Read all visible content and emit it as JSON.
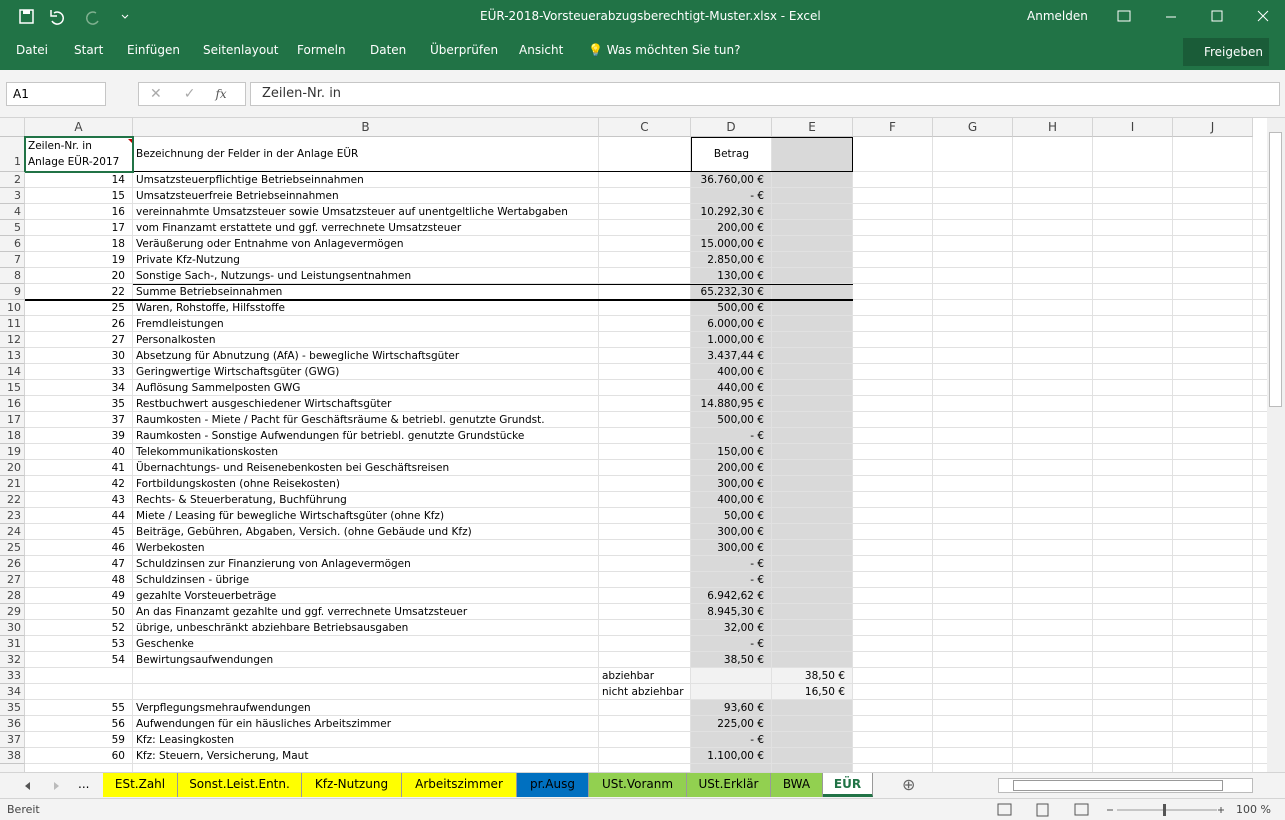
{
  "title_bar": {
    "title": "EÜR-2018-Vorsteuerabzugsberechtigt-Muster.xlsx  -  Excel",
    "sign_in": "Anmelden"
  },
  "ribbon": {
    "tabs": [
      "Datei",
      "Start",
      "Einfügen",
      "Seitenlayout",
      "Formeln",
      "Daten",
      "Überprüfen",
      "Ansicht"
    ],
    "tell_me": "Was möchten Sie tun?",
    "share": "Freigeben"
  },
  "formula_bar": {
    "name_box": "A1",
    "function_label": "fx",
    "content": "Zeilen-Nr. in"
  },
  "columns": [
    "A",
    "B",
    "C",
    "D",
    "E",
    "F",
    "G",
    "H",
    "I",
    "J"
  ],
  "header_row": {
    "row": 1,
    "a": [
      "Zeilen-Nr. in",
      "Anlage EÜR-2017"
    ],
    "b": "Bezeichnung der Felder in der Anlage EÜR",
    "d": "Betrag"
  },
  "rows": [
    {
      "row": 2,
      "a": 14,
      "b": "Umsatzsteuerpflichtige Betriebseinnahmen",
      "d": "36.760,00 €"
    },
    {
      "row": 3,
      "a": 15,
      "b": "Umsatzsteuerfreie Betriebseinnahmen",
      "d": "-   €"
    },
    {
      "row": 4,
      "a": 16,
      "b": "vereinnahmte Umsatzsteuer sowie Umsatzsteuer auf unentgeltliche Wertabgaben",
      "d": "10.292,30 €"
    },
    {
      "row": 5,
      "a": 17,
      "b": "vom Finanzamt erstattete und ggf. verrechnete Umsatzsteuer",
      "d": "200,00 €"
    },
    {
      "row": 6,
      "a": 18,
      "b": "Veräußerung oder Entnahme von Anlagevermögen",
      "d": "15.000,00 €"
    },
    {
      "row": 7,
      "a": 19,
      "b": "Private Kfz-Nutzung",
      "d": "2.850,00 €"
    },
    {
      "row": 8,
      "a": 20,
      "b": "Sonstige Sach-, Nutzungs- und Leistungsentnahmen",
      "d": "130,00 €"
    },
    {
      "row": 9,
      "a": 22,
      "b": "Summe Betriebseinnahmen",
      "d": "65.232,30 €"
    },
    {
      "row": 10,
      "a": 25,
      "b": "Waren, Rohstoffe, Hilfsstoffe",
      "d": "500,00 €"
    },
    {
      "row": 11,
      "a": 26,
      "b": "Fremdleistungen",
      "d": "6.000,00 €"
    },
    {
      "row": 12,
      "a": 27,
      "b": "Personalkosten",
      "d": "1.000,00 €"
    },
    {
      "row": 13,
      "a": 30,
      "b": "Absetzung für Abnutzung (AfA) - bewegliche Wirtschaftsgüter",
      "d": "3.437,44 €"
    },
    {
      "row": 14,
      "a": 33,
      "b": "Geringwertige Wirtschaftsgüter (GWG)",
      "d": "400,00 €"
    },
    {
      "row": 15,
      "a": 34,
      "b": "Auflösung Sammelposten GWG",
      "d": "440,00 €"
    },
    {
      "row": 16,
      "a": 35,
      "b": "Restbuchwert ausgeschiedener Wirtschaftsgüter",
      "d": "14.880,95 €"
    },
    {
      "row": 17,
      "a": 37,
      "b": "Raumkosten - Miete / Pacht für Geschäftsräume & betriebl. genutzte Grundst.",
      "d": "500,00 €"
    },
    {
      "row": 18,
      "a": 39,
      "b": "Raumkosten - Sonstige Aufwendungen für betriebl. genutzte Grundstücke",
      "d": "-   €"
    },
    {
      "row": 19,
      "a": 40,
      "b": "Telekommunikationskosten",
      "d": "150,00 €"
    },
    {
      "row": 20,
      "a": 41,
      "b": "Übernachtungs- und Reisenebenkosten bei Geschäftsreisen",
      "d": "200,00 €"
    },
    {
      "row": 21,
      "a": 42,
      "b": "Fortbildungskosten (ohne Reisekosten)",
      "d": "300,00 €"
    },
    {
      "row": 22,
      "a": 43,
      "b": "Rechts- & Steuerberatung, Buchführung",
      "d": "400,00 €"
    },
    {
      "row": 23,
      "a": 44,
      "b": "Miete / Leasing für bewegliche Wirtschaftsgüter (ohne Kfz)",
      "d": "50,00 €"
    },
    {
      "row": 24,
      "a": 45,
      "b": "Beiträge, Gebühren, Abgaben, Versich. (ohne Gebäude und Kfz)",
      "d": "300,00 €"
    },
    {
      "row": 25,
      "a": 46,
      "b": "Werbekosten",
      "d": "300,00 €"
    },
    {
      "row": 26,
      "a": 47,
      "b": "Schuldzinsen zur Finanzierung von Anlagevermögen",
      "d": "-   €"
    },
    {
      "row": 27,
      "a": 48,
      "b": "Schuldzinsen - übrige",
      "d": "-   €"
    },
    {
      "row": 28,
      "a": 49,
      "b": "gezahlte Vorsteuerbeträge",
      "d": "6.942,62 €"
    },
    {
      "row": 29,
      "a": 50,
      "b": "An das Finanzamt gezahlte und ggf. verrechnete Umsatzsteuer",
      "d": "8.945,30 €"
    },
    {
      "row": 30,
      "a": 52,
      "b": "übrige, unbeschränkt abziehbare Betriebsausgaben",
      "d": "32,00 €"
    },
    {
      "row": 31,
      "a": 53,
      "b": "Geschenke",
      "d": "-   €"
    },
    {
      "row": 32,
      "a": 54,
      "b": "Bewirtungsaufwendungen",
      "d": "38,50 €"
    },
    {
      "row": 33,
      "c": "abziehbar",
      "e": "38,50 €"
    },
    {
      "row": 34,
      "c": "nicht abziehbar",
      "e": "16,50 €"
    },
    {
      "row": 35,
      "a": 55,
      "b": "Verpflegungsmehraufwendungen",
      "d": "93,60 €"
    },
    {
      "row": 36,
      "a": 56,
      "b": "Aufwendungen für ein häusliches Arbeitszimmer",
      "d": "225,00 €"
    },
    {
      "row": 37,
      "a": 59,
      "b": "Kfz: Leasingkosten",
      "d": "-   €"
    },
    {
      "row": 38,
      "a": 60,
      "b": "Kfz: Steuern, Versicherung, Maut",
      "d": "1.100,00 €"
    }
  ],
  "sheet_nav": "...",
  "sheet_tabs": [
    {
      "name": "ESt.Zahl",
      "color": "#ffff00"
    },
    {
      "name": "Sonst.Leist.Entn.",
      "color": "#ffff00"
    },
    {
      "name": "Kfz-Nutzung",
      "color": "#ffff00"
    },
    {
      "name": "Arbeitszimmer",
      "color": "#ffff00"
    },
    {
      "name": "pr.Ausg",
      "color": "#0070c0"
    },
    {
      "name": "USt.Voranm",
      "color": "#92d050"
    },
    {
      "name": "USt.Erklär",
      "color": "#92d050"
    },
    {
      "name": "BWA",
      "color": "#92d050"
    },
    {
      "name": "EÜR",
      "color": "#ffffff"
    }
  ],
  "status": {
    "ready": "Bereit",
    "zoom": "100 %"
  }
}
